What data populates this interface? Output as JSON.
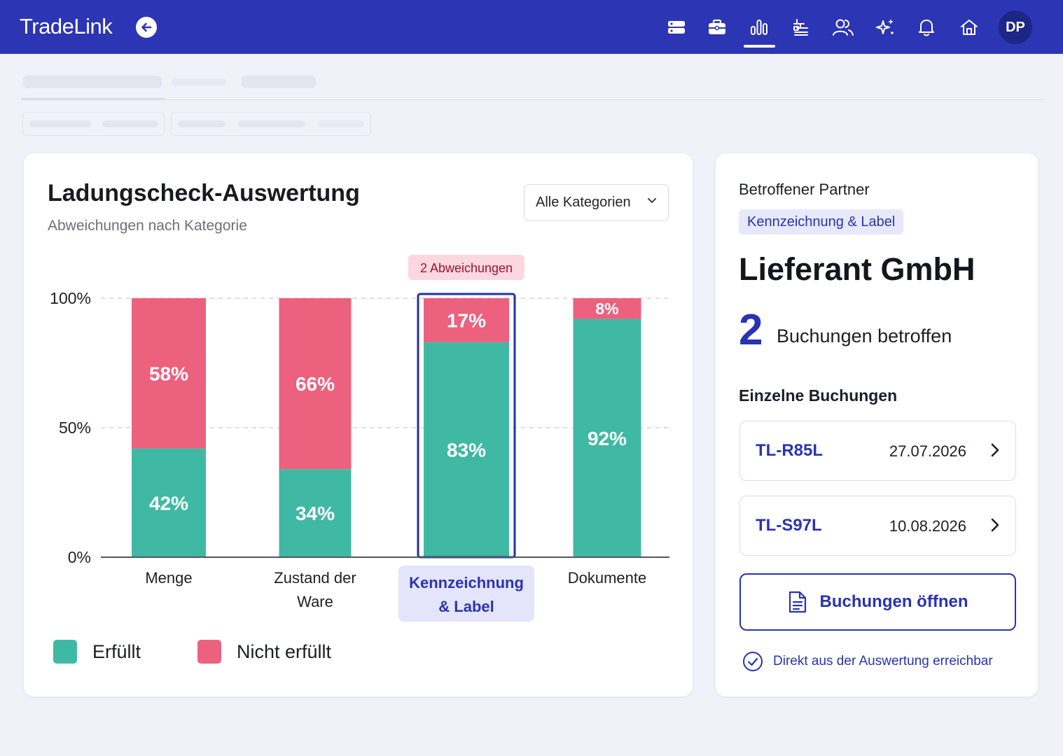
{
  "app": {
    "brand": "TradeLink",
    "user_initials": "DP"
  },
  "nav": {
    "icons": [
      "layers-icon",
      "briefcase-icon",
      "bar-chart-icon",
      "flow-icon",
      "users-icon",
      "sparkle-icon",
      "bell-icon",
      "home-icon"
    ],
    "active": "bar-chart-icon"
  },
  "chart_card": {
    "title": "Ladungscheck-Auswertung",
    "subtitle": "Abweichungen nach Kategorie",
    "filter": {
      "selected": "Alle Kategorien"
    },
    "highlight_badge": "2 Abweichungen"
  },
  "chart_data": {
    "type": "bar",
    "stacked": true,
    "percent": true,
    "categories": [
      "Menge",
      "Zustand der Ware",
      "Kennzeichnung & Label",
      "Dokumente"
    ],
    "series": [
      {
        "name": "Erfüllt",
        "color": "#40b9a4",
        "values": [
          42,
          34,
          83,
          92
        ],
        "labels": [
          "42%",
          "34%",
          "83%",
          "92%"
        ]
      },
      {
        "name": "Nicht erfüllt",
        "color": "#ec617e",
        "values": [
          58,
          66,
          17,
          8
        ],
        "labels": [
          "58%",
          "66%",
          "17%",
          "8%"
        ]
      }
    ],
    "y_ticks": [
      "0%",
      "50%",
      "100%"
    ],
    "ylim": [
      0,
      100
    ],
    "grid": true,
    "highlighted_category": "Kennzeichnung & Label",
    "legend_position": "bottom-left"
  },
  "side_card": {
    "label": "Betroffener Partner",
    "category_chip": "Kennzeichnung & Label",
    "partner_name": "Lieferant GmbH",
    "affected_count": "2",
    "affected_text": "Buchungen betroffen",
    "bookings_title": "Einzelne Buchungen",
    "bookings": [
      {
        "id": "TL-R85L",
        "date": "27.07.2026"
      },
      {
        "id": "TL-S97L",
        "date": "10.08.2026"
      }
    ],
    "open_button": "Buchungen öffnen",
    "footnote": "Direkt aus der Auswertung erreichbar"
  },
  "colors": {
    "primary": "#2c35b4",
    "accent_text": "#2a33b0",
    "fulfilled": "#40b9a4",
    "not_fulfilled": "#ec617e",
    "badge_bg": "#fcd7df",
    "badge_text": "#9c1230"
  }
}
